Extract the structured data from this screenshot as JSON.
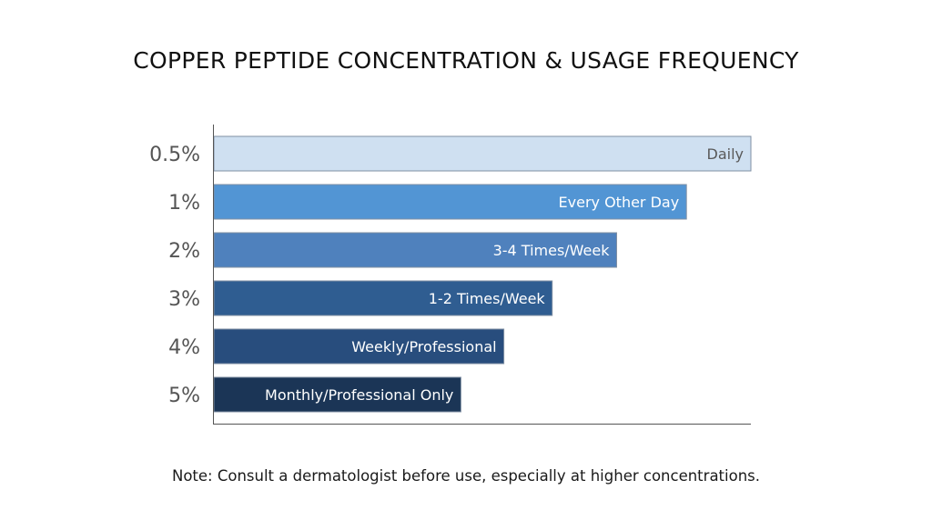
{
  "chart_data": {
    "type": "bar",
    "orientation": "horizontal",
    "title": "COPPER PEPTIDE CONCENTRATION & USAGE FREQUENCY",
    "categories": [
      "0.5%",
      "1%",
      "2%",
      "3%",
      "4%",
      "5%"
    ],
    "values": [
      100,
      88,
      75,
      63,
      54,
      46
    ],
    "data_labels": [
      "Daily",
      "Every Other Day",
      "3-4 Times/Week",
      "1-2 Times/Week",
      "Weekly/Professional",
      "Monthly/Professional Only"
    ],
    "xlim": [
      0,
      100
    ],
    "grid": false,
    "colors": [
      "#cfe0f1",
      "#5295d4",
      "#4f81bd",
      "#2f5d91",
      "#284d7d",
      "#1b3556"
    ],
    "label_colors": [
      "#595959",
      "#ffffff",
      "#ffffff",
      "#ffffff",
      "#ffffff",
      "#ffffff"
    ]
  },
  "note": "Note: Consult a dermatologist before use, especially at higher concentrations."
}
